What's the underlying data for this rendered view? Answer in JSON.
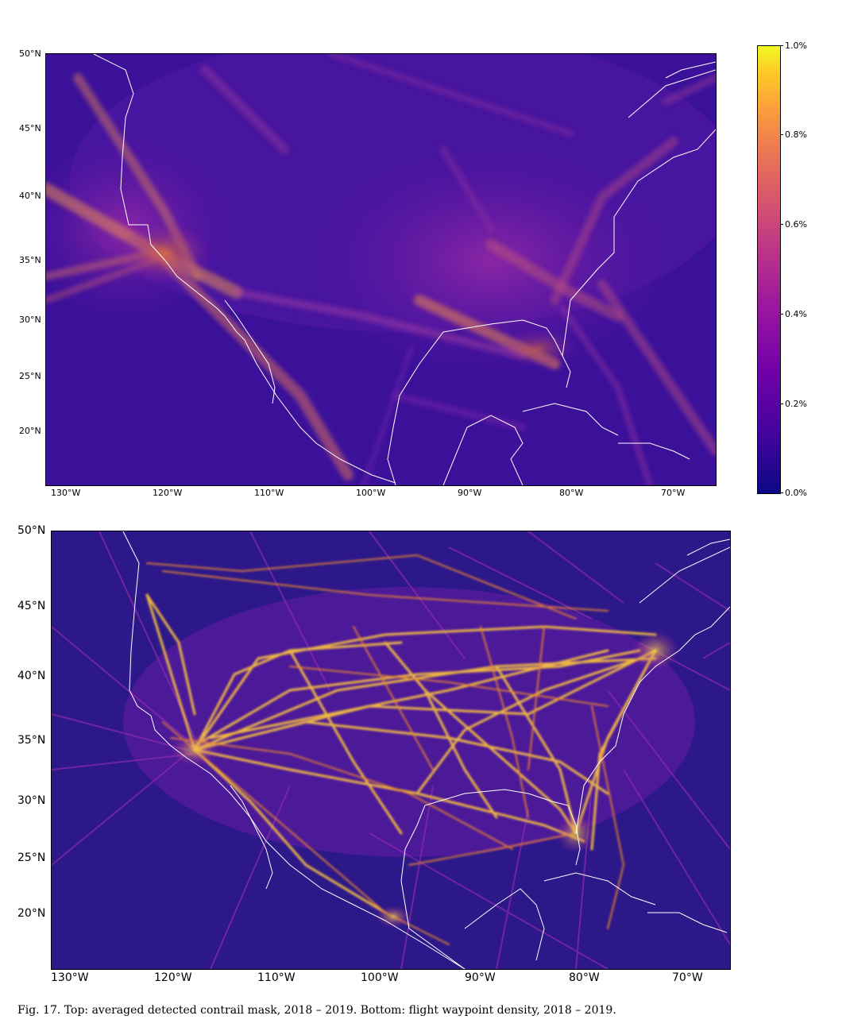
{
  "top_map": {
    "lat_labels": [
      "50°N",
      "45°N",
      "40°N",
      "35°N",
      "30°N",
      "25°N",
      "20°N"
    ],
    "lon_labels": [
      "130°W",
      "120°W",
      "110°W",
      "100°W",
      "90°W",
      "80°W",
      "70°W"
    ]
  },
  "colorbar": {
    "labels": [
      "1.0%",
      "0.8%",
      "0.6%",
      "0.4%",
      "0.2%",
      "0.0%"
    ],
    "colors": [
      "#0d0887",
      "#7201a8",
      "#bd3786",
      "#ed7953",
      "#fdca26",
      "#f0f921"
    ]
  },
  "bottom_map": {
    "lat_labels": [
      "50°N",
      "45°N",
      "40°N",
      "35°N",
      "30°N",
      "25°N",
      "20°N"
    ],
    "lon_labels": [
      "130°W",
      "120°W",
      "110°W",
      "100°W",
      "90°W",
      "80°W",
      "70°W"
    ]
  },
  "caption": "Fig. 17.  Top: averaged detected contrail mask, 2018 – 2019. Bottom: flight waypoint density, 2018 – 2019."
}
